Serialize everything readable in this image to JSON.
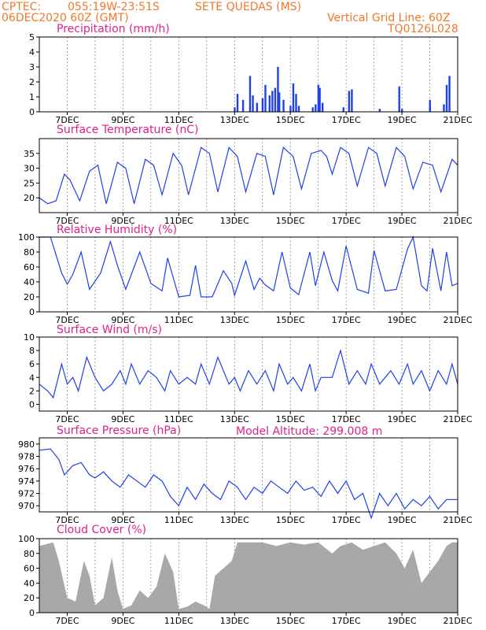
{
  "header": {
    "source": "CPTEC:",
    "coords": "055:19W-23:51S",
    "station": "SETE QUEDAS (MS)",
    "run": "06DEC2020 60Z (GMT)",
    "grid_note": "Vertical Grid Line: 60Z",
    "model": "TQ0126L028"
  },
  "altitude_label": "Model Altitude: 299.008 m",
  "colors": {
    "header": "#f0782a",
    "title": "#e0208c",
    "series": "#2040e8",
    "cloud": "#a8a8a8"
  },
  "chart_data": [
    {
      "type": "bar",
      "title": "Precipitation (mm/h)",
      "x_ticks": [
        "7DEC",
        "9DEC",
        "11DEC",
        "13DEC",
        "15DEC",
        "17DEC",
        "19DEC",
        "21DEC"
      ],
      "ylim": [
        0,
        5
      ],
      "y_ticks": [
        0,
        1,
        2,
        3,
        4,
        5
      ],
      "grid": "vertical dotted",
      "bars": [
        [
          13.0,
          0.3
        ],
        [
          13.1,
          1.2
        ],
        [
          13.3,
          0.8
        ],
        [
          13.55,
          2.4
        ],
        [
          13.65,
          1.1
        ],
        [
          13.8,
          0.6
        ],
        [
          14.0,
          0.9
        ],
        [
          14.1,
          1.8
        ],
        [
          14.25,
          1.1
        ],
        [
          14.35,
          1.4
        ],
        [
          14.45,
          1.6
        ],
        [
          14.55,
          3.0
        ],
        [
          14.6,
          1.3
        ],
        [
          14.75,
          0.8
        ],
        [
          15.0,
          0.4
        ],
        [
          15.1,
          1.9
        ],
        [
          15.2,
          1.2
        ],
        [
          15.3,
          0.4
        ],
        [
          15.8,
          0.3
        ],
        [
          15.9,
          0.5
        ],
        [
          16.0,
          1.8
        ],
        [
          16.05,
          1.6
        ],
        [
          16.15,
          0.6
        ],
        [
          16.9,
          0.3
        ],
        [
          17.1,
          1.4
        ],
        [
          17.2,
          1.5
        ],
        [
          18.2,
          0.2
        ],
        [
          18.9,
          1.7
        ],
        [
          19.0,
          0.2
        ],
        [
          20.0,
          0.8
        ],
        [
          20.5,
          0.5
        ],
        [
          20.6,
          1.8
        ],
        [
          20.7,
          2.4
        ]
      ]
    },
    {
      "type": "line",
      "title": "Surface Temperature (nC)",
      "x_ticks": [
        "7DEC",
        "9DEC",
        "11DEC",
        "13DEC",
        "15DEC",
        "17DEC",
        "19DEC",
        "21DEC"
      ],
      "ylim": [
        15,
        40
      ],
      "y_ticks": [
        20,
        25,
        30,
        35
      ],
      "grid": "vertical dotted",
      "points": [
        [
          6.0,
          20
        ],
        [
          6.3,
          18
        ],
        [
          6.6,
          19
        ],
        [
          6.9,
          28
        ],
        [
          7.1,
          26
        ],
        [
          7.45,
          19
        ],
        [
          7.8,
          29
        ],
        [
          8.1,
          31
        ],
        [
          8.4,
          18
        ],
        [
          8.8,
          32
        ],
        [
          9.1,
          30
        ],
        [
          9.4,
          18
        ],
        [
          9.8,
          33
        ],
        [
          10.1,
          31
        ],
        [
          10.4,
          21
        ],
        [
          10.8,
          35
        ],
        [
          11.1,
          31
        ],
        [
          11.35,
          21
        ],
        [
          11.8,
          37
        ],
        [
          12.1,
          35
        ],
        [
          12.4,
          22
        ],
        [
          12.8,
          37
        ],
        [
          13.1,
          34
        ],
        [
          13.4,
          22
        ],
        [
          13.8,
          35
        ],
        [
          14.1,
          34
        ],
        [
          14.4,
          21
        ],
        [
          14.75,
          37
        ],
        [
          15.1,
          34
        ],
        [
          15.4,
          23
        ],
        [
          15.75,
          35
        ],
        [
          16.1,
          36
        ],
        [
          16.3,
          34
        ],
        [
          16.5,
          28
        ],
        [
          16.8,
          37
        ],
        [
          17.1,
          35
        ],
        [
          17.4,
          24
        ],
        [
          17.8,
          37
        ],
        [
          18.1,
          35
        ],
        [
          18.4,
          24
        ],
        [
          18.8,
          37
        ],
        [
          19.1,
          34
        ],
        [
          19.4,
          23
        ],
        [
          19.75,
          32
        ],
        [
          20.1,
          31
        ],
        [
          20.4,
          22
        ],
        [
          20.8,
          33
        ],
        [
          21.0,
          31
        ]
      ]
    },
    {
      "type": "line",
      "title": "Relative Humidity (%)",
      "x_ticks": [
        "7DEC",
        "9DEC",
        "11DEC",
        "13DEC",
        "15DEC",
        "17DEC",
        "19DEC",
        "21DEC"
      ],
      "ylim": [
        0,
        100
      ],
      "y_ticks": [
        0,
        20,
        40,
        60,
        80,
        100
      ],
      "grid": "vertical dotted",
      "points": [
        [
          6.0,
          100
        ],
        [
          6.4,
          100
        ],
        [
          6.8,
          52
        ],
        [
          7.0,
          37
        ],
        [
          7.2,
          50
        ],
        [
          7.5,
          80
        ],
        [
          7.8,
          30
        ],
        [
          8.2,
          52
        ],
        [
          8.55,
          94
        ],
        [
          8.8,
          62
        ],
        [
          9.1,
          30
        ],
        [
          9.6,
          80
        ],
        [
          10.0,
          38
        ],
        [
          10.4,
          28
        ],
        [
          10.6,
          72
        ],
        [
          11.0,
          20
        ],
        [
          11.4,
          22
        ],
        [
          11.6,
          62
        ],
        [
          11.8,
          20
        ],
        [
          12.2,
          20
        ],
        [
          12.6,
          55
        ],
        [
          12.9,
          38
        ],
        [
          13.0,
          22
        ],
        [
          13.4,
          68
        ],
        [
          13.7,
          30
        ],
        [
          13.9,
          45
        ],
        [
          14.1,
          36
        ],
        [
          14.4,
          28
        ],
        [
          14.7,
          80
        ],
        [
          15.0,
          32
        ],
        [
          15.3,
          23
        ],
        [
          15.7,
          80
        ],
        [
          15.9,
          35
        ],
        [
          16.2,
          80
        ],
        [
          16.5,
          42
        ],
        [
          16.7,
          28
        ],
        [
          17.0,
          88
        ],
        [
          17.4,
          30
        ],
        [
          17.8,
          25
        ],
        [
          18.0,
          82
        ],
        [
          18.4,
          28
        ],
        [
          18.8,
          30
        ],
        [
          19.2,
          84
        ],
        [
          19.4,
          100
        ],
        [
          19.7,
          35
        ],
        [
          19.9,
          28
        ],
        [
          20.1,
          85
        ],
        [
          20.4,
          28
        ],
        [
          20.6,
          80
        ],
        [
          20.8,
          35
        ],
        [
          21.0,
          38
        ]
      ]
    },
    {
      "type": "line",
      "title": "Surface Wind (m/s)",
      "x_ticks": [
        "7DEC",
        "9DEC",
        "11DEC",
        "13DEC",
        "15DEC",
        "17DEC",
        "19DEC",
        "21DEC"
      ],
      "ylim": [
        -1,
        10
      ],
      "y_ticks": [
        0,
        2,
        4,
        6,
        8,
        10
      ],
      "grid": "vertical dotted",
      "points": [
        [
          6.0,
          3
        ],
        [
          6.3,
          2
        ],
        [
          6.5,
          1
        ],
        [
          6.8,
          6
        ],
        [
          7.0,
          3
        ],
        [
          7.2,
          4
        ],
        [
          7.4,
          2
        ],
        [
          7.7,
          7
        ],
        [
          8.0,
          4
        ],
        [
          8.3,
          2
        ],
        [
          8.6,
          3
        ],
        [
          8.9,
          5
        ],
        [
          9.1,
          3
        ],
        [
          9.3,
          6
        ],
        [
          9.6,
          3
        ],
        [
          9.9,
          5
        ],
        [
          10.2,
          4
        ],
        [
          10.5,
          2
        ],
        [
          10.7,
          5
        ],
        [
          11.0,
          3
        ],
        [
          11.3,
          4
        ],
        [
          11.6,
          3
        ],
        [
          11.8,
          6
        ],
        [
          12.1,
          3
        ],
        [
          12.4,
          7
        ],
        [
          12.8,
          3
        ],
        [
          13.0,
          4
        ],
        [
          13.2,
          2
        ],
        [
          13.5,
          5
        ],
        [
          13.8,
          3
        ],
        [
          14.1,
          5
        ],
        [
          14.4,
          2
        ],
        [
          14.6,
          6
        ],
        [
          14.9,
          3
        ],
        [
          15.1,
          4
        ],
        [
          15.4,
          2
        ],
        [
          15.7,
          6
        ],
        [
          15.9,
          2
        ],
        [
          16.1,
          4
        ],
        [
          16.5,
          4
        ],
        [
          16.8,
          8
        ],
        [
          17.1,
          3
        ],
        [
          17.4,
          5
        ],
        [
          17.7,
          3
        ],
        [
          17.9,
          6
        ],
        [
          18.2,
          3
        ],
        [
          18.6,
          5
        ],
        [
          18.9,
          3
        ],
        [
          19.2,
          6
        ],
        [
          19.4,
          3
        ],
        [
          19.7,
          5
        ],
        [
          20.0,
          2
        ],
        [
          20.3,
          5
        ],
        [
          20.6,
          3
        ],
        [
          20.8,
          6
        ],
        [
          21.0,
          3
        ]
      ]
    },
    {
      "type": "line",
      "title": "Surface Pressure (hPa)",
      "x_ticks": [
        "7DEC",
        "9DEC",
        "11DEC",
        "13DEC",
        "15DEC",
        "17DEC",
        "19DEC",
        "21DEC"
      ],
      "ylim": [
        969,
        981
      ],
      "y_ticks": [
        970,
        972,
        974,
        976,
        978,
        980
      ],
      "grid": "vertical dotted",
      "points": [
        [
          6.0,
          979
        ],
        [
          6.4,
          979.2
        ],
        [
          6.7,
          977.5
        ],
        [
          6.9,
          975
        ],
        [
          7.2,
          976.5
        ],
        [
          7.5,
          977
        ],
        [
          7.8,
          975
        ],
        [
          8.0,
          974.5
        ],
        [
          8.3,
          975.5
        ],
        [
          8.6,
          974
        ],
        [
          8.9,
          973
        ],
        [
          9.2,
          975
        ],
        [
          9.5,
          974
        ],
        [
          9.8,
          973
        ],
        [
          10.1,
          975
        ],
        [
          10.4,
          974
        ],
        [
          10.7,
          971.5
        ],
        [
          11.0,
          970
        ],
        [
          11.3,
          973
        ],
        [
          11.6,
          971
        ],
        [
          11.9,
          973.5
        ],
        [
          12.2,
          972
        ],
        [
          12.5,
          971
        ],
        [
          12.8,
          974
        ],
        [
          13.1,
          973
        ],
        [
          13.4,
          971
        ],
        [
          13.7,
          973
        ],
        [
          14.0,
          972
        ],
        [
          14.3,
          974
        ],
        [
          14.6,
          973
        ],
        [
          14.9,
          972
        ],
        [
          15.2,
          974
        ],
        [
          15.5,
          972.5
        ],
        [
          15.8,
          973
        ],
        [
          16.1,
          971.5
        ],
        [
          16.4,
          974
        ],
        [
          16.7,
          972
        ],
        [
          17.0,
          974
        ],
        [
          17.3,
          971
        ],
        [
          17.6,
          972
        ],
        [
          17.9,
          968
        ],
        [
          18.2,
          972
        ],
        [
          18.5,
          970
        ],
        [
          18.8,
          972
        ],
        [
          19.1,
          969.5
        ],
        [
          19.4,
          971
        ],
        [
          19.7,
          970
        ],
        [
          20.0,
          971.5
        ],
        [
          20.3,
          969.5
        ],
        [
          20.6,
          971
        ],
        [
          21.0,
          971
        ]
      ]
    },
    {
      "type": "area",
      "title": "Cloud Cover (%)",
      "x_ticks": [
        "7DEC",
        "9DEC",
        "11DEC",
        "13DEC",
        "15DEC",
        "17DEC",
        "19DEC",
        "21DEC"
      ],
      "ylim": [
        0,
        100
      ],
      "y_ticks": [
        0,
        20,
        40,
        60,
        80,
        100
      ],
      "grid": "vertical dotted",
      "points": [
        [
          6.0,
          90
        ],
        [
          6.5,
          95
        ],
        [
          6.7,
          70
        ],
        [
          7.0,
          20
        ],
        [
          7.3,
          15
        ],
        [
          7.6,
          70
        ],
        [
          7.8,
          50
        ],
        [
          8.0,
          10
        ],
        [
          8.3,
          20
        ],
        [
          8.6,
          75
        ],
        [
          8.8,
          30
        ],
        [
          9.0,
          5
        ],
        [
          9.3,
          10
        ],
        [
          9.6,
          30
        ],
        [
          9.9,
          20
        ],
        [
          10.2,
          35
        ],
        [
          10.5,
          80
        ],
        [
          10.8,
          55
        ],
        [
          11.0,
          5
        ],
        [
          11.3,
          8
        ],
        [
          11.6,
          15
        ],
        [
          11.9,
          10
        ],
        [
          12.1,
          5
        ],
        [
          12.3,
          50
        ],
        [
          12.6,
          60
        ],
        [
          12.9,
          70
        ],
        [
          13.1,
          95
        ],
        [
          13.5,
          95
        ],
        [
          14.0,
          95
        ],
        [
          14.5,
          90
        ],
        [
          15.0,
          95
        ],
        [
          15.5,
          92
        ],
        [
          16.0,
          95
        ],
        [
          16.5,
          80
        ],
        [
          16.8,
          90
        ],
        [
          17.2,
          95
        ],
        [
          17.6,
          85
        ],
        [
          18.0,
          90
        ],
        [
          18.4,
          95
        ],
        [
          18.8,
          80
        ],
        [
          19.1,
          60
        ],
        [
          19.4,
          85
        ],
        [
          19.7,
          40
        ],
        [
          20.0,
          55
        ],
        [
          20.3,
          70
        ],
        [
          20.6,
          90
        ],
        [
          20.8,
          95
        ],
        [
          21.0,
          95
        ]
      ]
    }
  ]
}
